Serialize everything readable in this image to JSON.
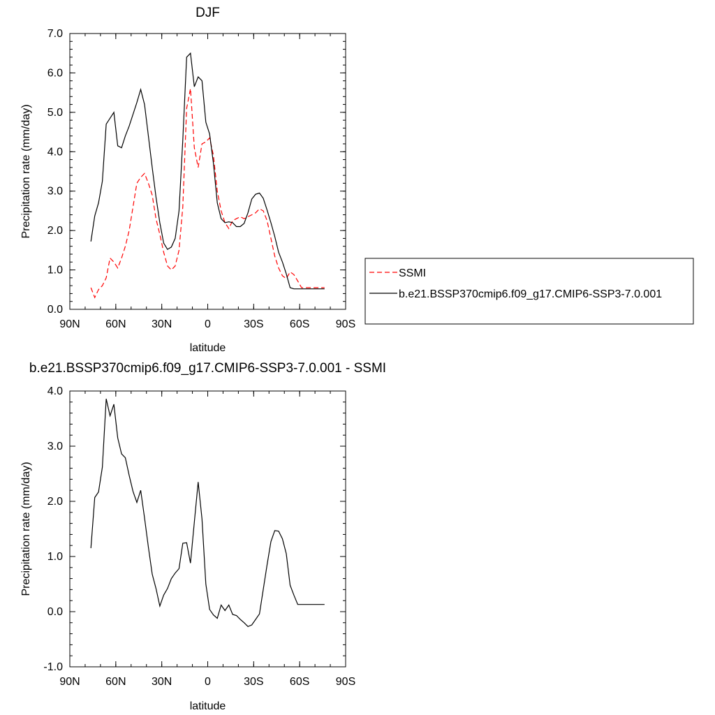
{
  "chart_data": [
    {
      "type": "line",
      "title": "DJF",
      "xlabel": "latitude",
      "ylabel": "Precipitation rate (mm/day)",
      "xlim": [
        90,
        -90
      ],
      "ylim": [
        0,
        7
      ],
      "x_ticks": [
        {
          "value": 90,
          "label": "90N"
        },
        {
          "value": 60,
          "label": "60N"
        },
        {
          "value": 30,
          "label": "30N"
        },
        {
          "value": 0,
          "label": "0"
        },
        {
          "value": -30,
          "label": "30S"
        },
        {
          "value": -60,
          "label": "60S"
        },
        {
          "value": -90,
          "label": "90S"
        }
      ],
      "y_ticks": [
        {
          "value": 0,
          "label": "0.0"
        },
        {
          "value": 1,
          "label": "1.0"
        },
        {
          "value": 2,
          "label": "2.0"
        },
        {
          "value": 3,
          "label": "3.0"
        },
        {
          "value": 4,
          "label": "4.0"
        },
        {
          "value": 5,
          "label": "5.0"
        },
        {
          "value": 6,
          "label": "6.0"
        },
        {
          "value": 7,
          "label": "7.0"
        }
      ],
      "legend": "right",
      "series": [
        {
          "name": "SSMI",
          "color": "#ff0000",
          "dash": "dashed",
          "x": [
            76.25,
            73.75,
            71.25,
            68.75,
            66.25,
            63.75,
            61.25,
            58.75,
            56.25,
            53.75,
            51.25,
            48.75,
            46.25,
            43.75,
            41.25,
            38.75,
            36.25,
            33.75,
            31.25,
            28.75,
            26.25,
            23.75,
            21.25,
            18.75,
            16.25,
            13.75,
            11.25,
            8.75,
            6.25,
            3.75,
            1.25,
            -1.25,
            -3.75,
            -6.25,
            -8.75,
            -11.25,
            -13.75,
            -16.25,
            -18.75,
            -21.25,
            -23.75,
            -26.25,
            -28.75,
            -31.25,
            -33.75,
            -36.25,
            -38.75,
            -41.25,
            -43.75,
            -46.25,
            -48.75,
            -51.25,
            -53.75,
            -56.25,
            -58.75,
            -61.25,
            -63.75,
            -66.25,
            -68.75,
            -71.25,
            -73.75,
            -76.25
          ],
          "y": [
            0.55,
            0.3,
            0.5,
            0.6,
            0.8,
            1.3,
            1.2,
            1.05,
            1.3,
            1.6,
            2.0,
            2.6,
            3.2,
            3.35,
            3.45,
            3.2,
            2.9,
            2.3,
            1.9,
            1.45,
            1.1,
            1.0,
            1.1,
            1.5,
            2.6,
            5.1,
            5.6,
            4.1,
            3.6,
            4.2,
            4.25,
            4.35,
            3.9,
            3.0,
            2.5,
            2.2,
            2.05,
            2.25,
            2.3,
            2.35,
            2.3,
            2.35,
            2.4,
            2.45,
            2.55,
            2.5,
            2.25,
            1.8,
            1.35,
            1.05,
            0.85,
            0.78,
            0.95,
            0.88,
            0.72,
            0.55,
            0.55,
            0.55,
            0.55,
            0.55,
            0.55,
            0.55
          ]
        },
        {
          "name": "b.e21.BSSP370cmip6.f09_g17.CMIP6-SSP3-7.0.001",
          "color": "#000000",
          "dash": "solid",
          "x": [
            76.25,
            73.75,
            71.25,
            68.75,
            66.25,
            63.75,
            61.25,
            58.75,
            56.25,
            53.75,
            51.25,
            48.75,
            46.25,
            43.75,
            41.25,
            38.75,
            36.25,
            33.75,
            31.25,
            28.75,
            26.25,
            23.75,
            21.25,
            18.75,
            16.25,
            13.75,
            11.25,
            8.75,
            6.25,
            3.75,
            1.25,
            -1.25,
            -3.75,
            -6.25,
            -8.75,
            -11.25,
            -13.75,
            -16.25,
            -18.75,
            -21.25,
            -23.75,
            -26.25,
            -28.75,
            -31.25,
            -33.75,
            -36.25,
            -38.75,
            -41.25,
            -43.75,
            -46.25,
            -48.75,
            -51.25,
            -53.75,
            -56.25,
            -58.75,
            -61.25,
            -63.75,
            -66.25,
            -68.75,
            -71.25,
            -73.75,
            -76.25
          ],
          "y": [
            1.72,
            2.37,
            2.7,
            3.25,
            4.7,
            4.85,
            5.0,
            4.15,
            4.1,
            4.4,
            4.65,
            4.95,
            5.25,
            5.58,
            5.2,
            4.4,
            3.6,
            2.85,
            2.2,
            1.68,
            1.52,
            1.58,
            1.8,
            2.5,
            4.3,
            6.4,
            6.5,
            5.65,
            5.9,
            5.8,
            4.75,
            4.45,
            3.7,
            2.7,
            2.3,
            2.2,
            2.22,
            2.2,
            2.1,
            2.1,
            2.18,
            2.45,
            2.8,
            2.92,
            2.95,
            2.82,
            2.52,
            2.2,
            1.85,
            1.45,
            1.2,
            0.9,
            0.55,
            0.52,
            0.52,
            0.52,
            0.52,
            0.52,
            0.52,
            0.52,
            0.52,
            0.52
          ]
        }
      ]
    },
    {
      "type": "line",
      "title": "b.e21.BSSP370cmip6.f09_g17.CMIP6-SSP3-7.0.001 - SSMI",
      "xlabel": "latitude",
      "ylabel": "Precipitation rate (mm/day)",
      "xlim": [
        90,
        -90
      ],
      "ylim": [
        -1,
        4
      ],
      "x_ticks": [
        {
          "value": 90,
          "label": "90N"
        },
        {
          "value": 60,
          "label": "60N"
        },
        {
          "value": 30,
          "label": "30N"
        },
        {
          "value": 0,
          "label": "0"
        },
        {
          "value": -30,
          "label": "30S"
        },
        {
          "value": -60,
          "label": "60S"
        },
        {
          "value": -90,
          "label": "90S"
        }
      ],
      "y_ticks": [
        {
          "value": -1,
          "label": "-1.0"
        },
        {
          "value": 0,
          "label": "0.0"
        },
        {
          "value": 1,
          "label": "1.0"
        },
        {
          "value": 2,
          "label": "2.0"
        },
        {
          "value": 3,
          "label": "3.0"
        },
        {
          "value": 4,
          "label": "4.0"
        }
      ],
      "series": [
        {
          "name": "",
          "color": "#000000",
          "dash": "solid",
          "x": [
            76.25,
            73.75,
            71.25,
            68.75,
            66.25,
            63.75,
            61.25,
            58.75,
            56.25,
            53.75,
            51.25,
            48.75,
            46.25,
            43.75,
            41.25,
            38.75,
            36.25,
            33.75,
            31.25,
            28.75,
            26.25,
            23.75,
            21.25,
            18.75,
            16.25,
            13.75,
            11.25,
            8.75,
            6.25,
            3.75,
            1.25,
            -1.25,
            -3.75,
            -6.25,
            -8.75,
            -11.25,
            -13.75,
            -16.25,
            -18.75,
            -21.25,
            -23.75,
            -26.25,
            -28.75,
            -31.25,
            -33.75,
            -36.25,
            -38.75,
            -41.25,
            -43.75,
            -46.25,
            -48.75,
            -51.25,
            -53.75,
            -56.25,
            -58.75,
            -61.25,
            -63.75,
            -66.25,
            -68.75,
            -71.25,
            -73.75,
            -76.25
          ],
          "y": [
            1.15,
            2.07,
            2.17,
            2.62,
            3.86,
            3.55,
            3.76,
            3.15,
            2.86,
            2.79,
            2.47,
            2.18,
            1.98,
            2.2,
            1.7,
            1.17,
            0.68,
            0.42,
            0.1,
            0.3,
            0.42,
            0.6,
            0.7,
            0.78,
            1.24,
            1.25,
            0.88,
            1.62,
            2.35,
            1.68,
            0.5,
            0.04,
            -0.06,
            -0.12,
            0.12,
            0.02,
            0.12,
            -0.05,
            -0.07,
            -0.14,
            -0.2,
            -0.27,
            -0.24,
            -0.14,
            -0.04,
            0.4,
            0.85,
            1.27,
            1.47,
            1.46,
            1.32,
            1.05,
            0.48,
            0.3,
            0.13,
            0.13,
            0.13,
            0.13,
            0.13,
            0.13,
            0.13,
            0.13
          ]
        }
      ]
    }
  ]
}
